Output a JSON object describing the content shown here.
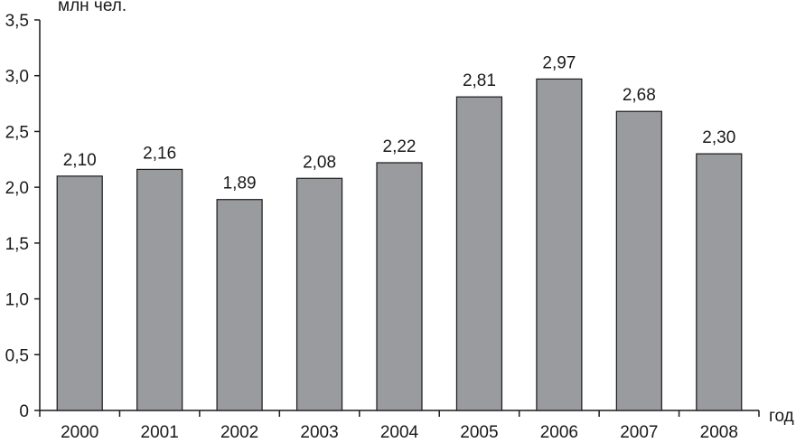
{
  "chart_data": {
    "type": "bar",
    "ylabel": "млн чел.",
    "xlabel": "год",
    "ylim": [
      0,
      3.5
    ],
    "yticks": [
      "0",
      "0,5",
      "1,0",
      "1,5",
      "2,0",
      "2,5",
      "3,0",
      "3,5"
    ],
    "categories": [
      "2000",
      "2001",
      "2002",
      "2003",
      "2004",
      "2005",
      "2006",
      "2007",
      "2008"
    ],
    "values": [
      2.1,
      2.16,
      1.89,
      2.08,
      2.22,
      2.81,
      2.97,
      2.68,
      2.3
    ],
    "value_labels": [
      "2,10",
      "2,16",
      "1,89",
      "2,08",
      "2,22",
      "2,81",
      "2,97",
      "2,68",
      "2,30"
    ],
    "bar_color": "#9a9b9f",
    "bar_stroke": "#1a1a1a",
    "grid": false,
    "legend": "none"
  }
}
